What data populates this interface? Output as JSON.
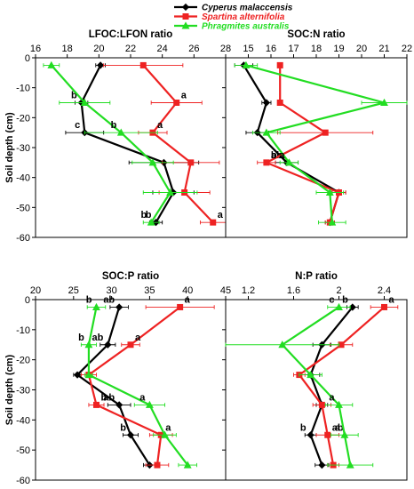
{
  "legend": {
    "items": [
      {
        "label": "Cyperus malaccensis",
        "color": "#000000",
        "marker": "diamond"
      },
      {
        "label": "Spartina alternifolia",
        "color": "#ee2222",
        "marker": "square"
      },
      {
        "label": "Phragmites australis",
        "color": "#22dd22",
        "marker": "triangle"
      }
    ]
  },
  "chart_data": [
    {
      "type": "line",
      "title": "LFOC:LFON ratio",
      "ylabel": "Soil depth (cm)",
      "xlim": [
        16,
        28
      ],
      "xticks": [
        16,
        18,
        20,
        22,
        24,
        26,
        28
      ],
      "ylim": [
        -60,
        0
      ],
      "yticks": [
        0,
        -10,
        -20,
        -30,
        -40,
        -50,
        -60
      ],
      "depth": [
        -2.5,
        -15,
        -25,
        -35,
        -45,
        -55
      ],
      "series": [
        {
          "name": "Cyperus malaccensis",
          "color": "#000000",
          "marker": "diamond",
          "x": [
            20.1,
            18.9,
            19.1,
            24.1,
            24.7,
            23.6
          ],
          "err": [
            0.3,
            0.4,
            1.2,
            2.2,
            1.3,
            0.4
          ],
          "labels": [
            "",
            "b",
            "c",
            "",
            "",
            "b"
          ]
        },
        {
          "name": "Spartina alternifolia",
          "color": "#ee2222",
          "marker": "square",
          "x": [
            22.8,
            24.9,
            23.4,
            25.8,
            25.4,
            27.2
          ],
          "err": [
            2.5,
            1.6,
            0.9,
            1.8,
            1.6,
            0.8
          ],
          "labels": [
            "",
            "a",
            "a",
            "",
            "",
            "a"
          ]
        },
        {
          "name": "Phragmites australis",
          "color": "#22dd22",
          "marker": "triangle",
          "x": [
            17.0,
            19.1,
            21.4,
            23.4,
            24.5,
            23.3
          ],
          "err": [
            0.5,
            1.6,
            2.3,
            1.3,
            1.7,
            0.5
          ],
          "labels": [
            "",
            "",
            "b",
            "",
            "",
            "b"
          ]
        }
      ]
    },
    {
      "type": "line",
      "title": "SOC:N ratio",
      "ylabel": "",
      "xlim": [
        14,
        22
      ],
      "xticks": [
        15,
        16,
        17,
        18,
        19,
        20,
        21,
        22
      ],
      "xtick_min": 15,
      "ylim": [
        -60,
        0
      ],
      "yticks": [
        0,
        -10,
        -20,
        -30,
        -40,
        -50,
        -60
      ],
      "depth": [
        -2.5,
        -15,
        -25,
        -35,
        -45,
        -55
      ],
      "series": [
        {
          "name": "Cyperus malaccensis",
          "color": "#000000",
          "marker": "diamond",
          "x": [
            14.8,
            15.8,
            15.4,
            16.7,
            19.0,
            18.6
          ],
          "err": [
            0.4,
            0.2,
            0.5,
            0.5,
            0.3,
            0.2
          ],
          "labels": [
            "",
            "",
            "",
            "ab",
            "",
            ""
          ]
        },
        {
          "name": "Spartina alternifolia",
          "color": "#ee2222",
          "marker": "square",
          "x": [
            16.4,
            16.4,
            18.4,
            15.8,
            19.0,
            18.6
          ],
          "err": [
            0.05,
            0.1,
            2.1,
            0.4,
            0.3,
            0.2
          ],
          "labels": [
            "",
            "",
            "",
            "b",
            "",
            ""
          ]
        },
        {
          "name": "Phragmites australis",
          "color": "#22dd22",
          "marker": "triangle",
          "x": [
            14.9,
            21.0,
            15.8,
            16.8,
            18.6,
            18.7
          ],
          "err": [
            0.5,
            1.0,
            0.6,
            0.4,
            0.6,
            0.6
          ],
          "labels": [
            "",
            "",
            "",
            "a",
            "",
            ""
          ]
        }
      ]
    },
    {
      "type": "line",
      "title": "SOC:P ratio",
      "ylabel": "Soil depth (cm)",
      "xlim": [
        20,
        45
      ],
      "xticks": [
        20,
        25,
        30,
        35,
        40,
        45
      ],
      "ylim": [
        -60,
        0
      ],
      "yticks": [
        0,
        -10,
        -20,
        -30,
        -40,
        -50,
        -60
      ],
      "depth": [
        -2.5,
        -15,
        -25,
        -35,
        -45,
        -55
      ],
      "series": [
        {
          "name": "Cyperus malaccensis",
          "color": "#000000",
          "marker": "diamond",
          "x": [
            31.0,
            29.5,
            25.5,
            31.0,
            32.5,
            35.0
          ],
          "err": [
            1.2,
            1.0,
            0.5,
            1.5,
            1.0,
            0.8
          ],
          "labels": [
            "ab",
            "ab",
            "",
            "ab",
            "b",
            ""
          ]
        },
        {
          "name": "Spartina alternifolia",
          "color": "#ee2222",
          "marker": "square",
          "x": [
            39.0,
            32.5,
            27.0,
            28.0,
            36.5,
            36.0
          ],
          "err": [
            4.5,
            1.2,
            1.0,
            1.0,
            1.5,
            1.5
          ],
          "labels": [
            "a",
            "a",
            "",
            "b",
            "a",
            ""
          ]
        },
        {
          "name": "Phragmites australis",
          "color": "#22dd22",
          "marker": "triangle",
          "x": [
            28.0,
            27.0,
            27.0,
            35.0,
            37.0,
            40.0
          ],
          "err": [
            1.2,
            1.0,
            0.5,
            2.0,
            1.5,
            1.2
          ],
          "labels": [
            "b",
            "b",
            "",
            "a",
            "",
            ""
          ]
        }
      ]
    },
    {
      "type": "line",
      "title": "N:P ratio",
      "ylabel": "",
      "xlim": [
        1.0,
        2.6
      ],
      "xticks": [
        1.2,
        1.6,
        2.0,
        2.4
      ],
      "ylim": [
        -60,
        0
      ],
      "yticks": [
        0,
        -10,
        -20,
        -30,
        -40,
        -50,
        -60
      ],
      "depth": [
        -2.5,
        -15,
        -25,
        -35,
        -45,
        -55
      ],
      "series": [
        {
          "name": "Cyperus malaccensis",
          "color": "#000000",
          "marker": "diamond",
          "x": [
            2.12,
            1.85,
            1.75,
            1.85,
            1.75,
            1.85
          ],
          "err": [
            0.05,
            0.08,
            0.08,
            0.05,
            0.05,
            0.06
          ],
          "labels": [
            "b",
            "",
            "",
            "",
            "b",
            ""
          ]
        },
        {
          "name": "Spartina alternifolia",
          "color": "#ee2222",
          "marker": "square",
          "x": [
            2.4,
            2.02,
            1.65,
            1.85,
            1.9,
            1.95
          ],
          "err": [
            0.12,
            0.1,
            0.05,
            0.08,
            0.1,
            0.05
          ],
          "labels": [
            "a",
            "",
            "",
            "",
            "ab",
            ""
          ]
        },
        {
          "name": "Phragmites australis",
          "color": "#22dd22",
          "marker": "triangle",
          "x": [
            2.0,
            1.5,
            1.75,
            2.0,
            2.05,
            2.1
          ],
          "err": [
            0.1,
            0.5,
            0.1,
            0.12,
            0.12,
            0.2
          ],
          "labels": [
            "c",
            "",
            "",
            "a",
            "a",
            ""
          ]
        }
      ]
    }
  ]
}
